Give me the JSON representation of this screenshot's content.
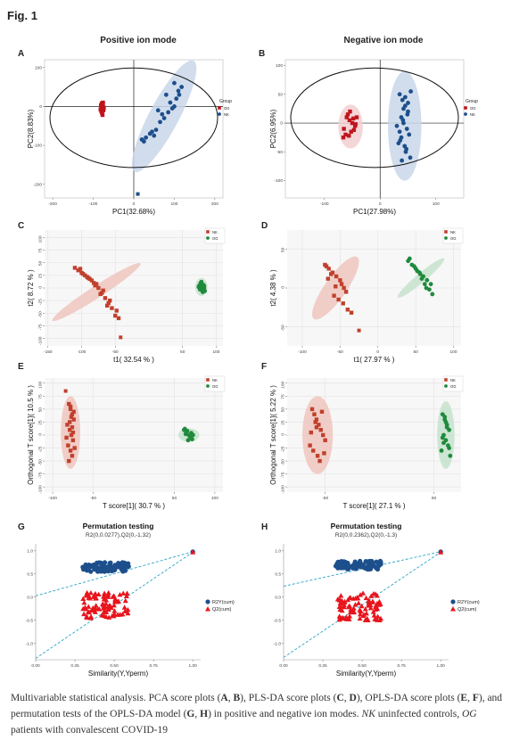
{
  "figure_title": "Fig. 1",
  "panels": {
    "A": {
      "letter": "A",
      "heading": "Positive ion mode"
    },
    "B": {
      "letter": "B",
      "heading": "Negative ion mode"
    },
    "C": {
      "letter": "C"
    },
    "D": {
      "letter": "D"
    },
    "E": {
      "letter": "E"
    },
    "F": {
      "letter": "F"
    },
    "G": {
      "letter": "G"
    },
    "H": {
      "letter": "H"
    }
  },
  "caption": {
    "p1": "Multivariable statistical analysis. PCA score plots (",
    "A": "A",
    "s1": ", ",
    "B": "B",
    "p2": "), PLS-DA score plots (",
    "C": "C",
    "s2": ", ",
    "D": "D",
    "p3": "), OPLS-DA score plots (",
    "E": "E",
    "s3": ", ",
    "F": "F",
    "p4": "), and permutation tests of the OPLS-DA model (",
    "G": "G",
    "s4": ", ",
    "H": "H",
    "p5": ") in positive and negative ion modes. ",
    "NK": "NK",
    "p6": " uninfected controls, ",
    "OG": "OG",
    "p7": " patients with convalescent COVID-19"
  },
  "chart_data": [
    {
      "id": "A",
      "type": "scatter",
      "xlabel": "PC1(32.68%)",
      "ylabel": "PC2(8.83%)",
      "xlim": [
        -220,
        220
      ],
      "ylim": [
        -235,
        120
      ],
      "xticks": [
        -200,
        -100,
        0,
        100,
        200
      ],
      "yticks": [
        -200,
        -100,
        0,
        100
      ],
      "legend": {
        "title": "Group",
        "entries": [
          "OG",
          "NK"
        ],
        "placement": "right"
      },
      "colors": {
        "OG": "#c0141c",
        "NK": "#1d4f8c"
      },
      "series": [
        {
          "name": "OG",
          "shape": "square",
          "x": [
            -80,
            -78,
            -76,
            -74,
            -82,
            -79,
            -77,
            -75,
            -81,
            -78,
            -76,
            -80,
            -74,
            -77,
            -79,
            -75
          ],
          "y": [
            -2,
            4,
            10,
            -5,
            -8,
            -14,
            0,
            -10,
            3,
            -18,
            6,
            -12,
            -3,
            -22,
            8,
            -6
          ]
        },
        {
          "name": "NK",
          "shape": "circle",
          "x": [
            80,
            90,
            100,
            60,
            70,
            110,
            105,
            95,
            40,
            55,
            30,
            25,
            20,
            45,
            65,
            75,
            85,
            100,
            112,
            118,
            50
          ],
          "y": [
            30,
            10,
            0,
            -10,
            -20,
            40,
            20,
            -5,
            -70,
            -60,
            -80,
            -90,
            -85,
            -65,
            -40,
            -30,
            -15,
            60,
            30,
            50,
            -75
          ]
        }
      ],
      "extra_points": [
        {
          "x": 10,
          "y": -225,
          "color": "#1d4f8c"
        }
      ],
      "ellipses": [
        {
          "cx": 75,
          "cy": -25,
          "rx": 155,
          "ry": 38,
          "angle_deg": 62,
          "fill": "#c9d7ea"
        }
      ]
    },
    {
      "id": "B",
      "type": "scatter",
      "xlabel": "PC1(27.98%)",
      "ylabel": "PC2(6.95%)",
      "xlim": [
        -170,
        150
      ],
      "ylim": [
        -130,
        110
      ],
      "xticks": [
        -100,
        0,
        100
      ],
      "yticks": [
        -100,
        -50,
        0,
        50,
        100
      ],
      "legend": {
        "title": "Group",
        "entries": [
          "OG",
          "NK"
        ],
        "placement": "right"
      },
      "colors": {
        "OG": "#c0141c",
        "NK": "#1d4f8c"
      },
      "series": [
        {
          "name": "OG",
          "shape": "square",
          "x": [
            -60,
            -55,
            -50,
            -45,
            -65,
            -58,
            -52,
            -48,
            -62,
            -56,
            -44,
            -42,
            -66,
            -54,
            -47
          ],
          "y": [
            10,
            5,
            0,
            -5,
            -10,
            15,
            -15,
            8,
            -20,
            -22,
            -2,
            10,
            -25,
            20,
            -12
          ]
        },
        {
          "name": "NK",
          "shape": "circle",
          "x": [
            35,
            40,
            45,
            50,
            38,
            42,
            48,
            52,
            36,
            44,
            46,
            54,
            39,
            41,
            49,
            30,
            35,
            45,
            50,
            42,
            38,
            55,
            47,
            33
          ],
          "y": [
            50,
            40,
            30,
            20,
            10,
            0,
            -10,
            -20,
            -30,
            -40,
            -50,
            -60,
            -65,
            5,
            15,
            -5,
            -15,
            45,
            35,
            25,
            -25,
            55,
            -45,
            -35
          ]
        }
      ],
      "ellipses": [
        {
          "cx": -53,
          "cy": -6,
          "rx": 22,
          "ry": 38,
          "angle_deg": 0,
          "fill": "#f2cfd1"
        },
        {
          "cx": 44,
          "cy": -5,
          "rx": 30,
          "ry": 95,
          "angle_deg": 0,
          "fill": "#c9d7ea"
        }
      ]
    },
    {
      "id": "C",
      "type": "scatter",
      "xlabel": "t1( 32.54 % )",
      "ylabel": "t2( 8.72 % )",
      "xlim": [
        -155,
        110
      ],
      "ylim": [
        -115,
        115
      ],
      "xticks": [
        -150,
        -100,
        -50,
        50,
        100
      ],
      "yticks": [
        -100,
        -75,
        -50,
        -25,
        0,
        25,
        50,
        75,
        100
      ],
      "legend": {
        "entries": [
          "NK",
          "OG"
        ],
        "placement": "top-right"
      },
      "colors": {
        "NK": "#c0402c",
        "OG": "#1f8a3c"
      },
      "series": [
        {
          "name": "NK",
          "shape": "square",
          "x": [
            -110,
            -105,
            -100,
            -95,
            -90,
            -85,
            -80,
            -75,
            -70,
            -65,
            -60,
            -55,
            -50,
            -45,
            -98,
            -88,
            -78,
            -68,
            -58,
            -48,
            -102,
            -92,
            -82,
            -72,
            -62
          ],
          "y": [
            40,
            35,
            30,
            25,
            20,
            15,
            5,
            0,
            -10,
            -20,
            -30,
            -40,
            -55,
            -60,
            28,
            18,
            8,
            -5,
            -25,
            -45,
            38,
            22,
            10,
            -12,
            -35
          ]
        },
        {
          "name": "OG",
          "shape": "circle",
          "x": [
            75,
            78,
            80,
            82,
            76,
            79,
            81,
            77,
            83,
            74,
            80,
            78,
            82,
            76
          ],
          "y": [
            5,
            8,
            3,
            0,
            -2,
            -4,
            6,
            10,
            -6,
            2,
            -8,
            12,
            4,
            -3
          ]
        }
      ],
      "extra_points": [
        {
          "x": -42,
          "y": -98,
          "color": "#c0402c"
        }
      ],
      "ellipses": [
        {
          "cx": -78,
          "cy": -8,
          "rx": 78,
          "ry": 12,
          "angle_deg": 33,
          "fill": "#f0c6be"
        },
        {
          "cx": 78,
          "cy": 2,
          "rx": 9,
          "ry": 18,
          "angle_deg": 0,
          "fill": "#c6e3cd"
        }
      ]
    },
    {
      "id": "D",
      "type": "scatter",
      "xlabel": "t1( 27.97 % )",
      "ylabel": "t2( 4.38 % )",
      "xlim": [
        -120,
        110
      ],
      "ylim": [
        -75,
        75
      ],
      "xticks": [
        -100,
        -50,
        0,
        50,
        100
      ],
      "yticks": [
        -50,
        0,
        50
      ],
      "legend": {
        "entries": [
          "NK",
          "OG"
        ],
        "placement": "top-right"
      },
      "colors": {
        "NK": "#c0402c",
        "OG": "#1f8a3c"
      },
      "series": [
        {
          "name": "NK",
          "shape": "square",
          "x": [
            -70,
            -65,
            -60,
            -55,
            -50,
            -48,
            -45,
            -42,
            -68,
            -62,
            -58,
            -52,
            -46,
            -40,
            -35,
            -66,
            -56
          ],
          "y": [
            30,
            25,
            20,
            15,
            10,
            5,
            0,
            -5,
            28,
            18,
            -10,
            -15,
            -20,
            -28,
            -32,
            12,
            2
          ]
        },
        {
          "name": "OG",
          "shape": "circle",
          "x": [
            40,
            45,
            50,
            55,
            60,
            65,
            70,
            48,
            52,
            58,
            62,
            68,
            42,
            56,
            64,
            72
          ],
          "y": [
            35,
            30,
            25,
            20,
            15,
            10,
            5,
            28,
            22,
            12,
            5,
            -2,
            38,
            18,
            0,
            -8
          ]
        }
      ],
      "extra_points": [
        {
          "x": -25,
          "y": -55,
          "color": "#c0402c"
        }
      ],
      "ellipses": [
        {
          "cx": -56,
          "cy": 0,
          "rx": 50,
          "ry": 14,
          "angle_deg": 55,
          "fill": "#f0c6be"
        },
        {
          "cx": 57,
          "cy": 13,
          "rx": 40,
          "ry": 6,
          "angle_deg": 40,
          "fill": "#c6e3cd"
        }
      ]
    },
    {
      "id": "E",
      "type": "scatter",
      "xlabel": "T score[1]( 30.7 % )",
      "ylabel": "Orthogonal T score[1]( 10.5 % )",
      "xlim": [
        -110,
        110
      ],
      "ylim": [
        -110,
        110
      ],
      "xticks": [
        -100,
        -50,
        50,
        100
      ],
      "yticks": [
        -100,
        -75,
        -50,
        -25,
        0,
        25,
        50,
        75,
        100
      ],
      "legend": {
        "entries": [
          "NK",
          "OG"
        ],
        "placement": "top-right"
      },
      "colors": {
        "NK": "#c0402c",
        "OG": "#1f8a3c"
      },
      "series": [
        {
          "name": "NK",
          "shape": "square",
          "x": [
            -80,
            -78,
            -76,
            -74,
            -82,
            -79,
            -77,
            -75,
            -81,
            -78,
            -76,
            -80,
            -74,
            -77,
            -79,
            -75,
            -83,
            -73,
            -78,
            -76
          ],
          "y": [
            60,
            50,
            40,
            30,
            20,
            10,
            0,
            -10,
            -20,
            -30,
            -40,
            -50,
            45,
            35,
            25,
            5,
            -5,
            -25,
            55,
            15
          ]
        },
        {
          "name": "OG",
          "shape": "circle",
          "x": [
            62,
            65,
            68,
            70,
            72,
            66,
            64,
            69,
            71,
            67,
            63,
            73
          ],
          "y": [
            10,
            5,
            0,
            -5,
            -8,
            8,
            2,
            -2,
            4,
            -10,
            12,
            0
          ]
        }
      ],
      "extra_points": [
        {
          "x": -84,
          "y": 85,
          "color": "#c0402c"
        }
      ],
      "ellipses": [
        {
          "cx": -78,
          "cy": 5,
          "rx": 12,
          "ry": 70,
          "angle_deg": 0,
          "fill": "#f0c6be"
        },
        {
          "cx": 68,
          "cy": 0,
          "rx": 13,
          "ry": 13,
          "angle_deg": 0,
          "fill": "#c6e3cd"
        }
      ]
    },
    {
      "id": "F",
      "type": "scatter",
      "xlabel": "T score[1]( 27.1 % )",
      "ylabel": "Orthogonal T score[1]( 5.22 % )",
      "xlim": [
        -85,
        75
      ],
      "ylim": [
        -110,
        110
      ],
      "xticks": [
        -50,
        50
      ],
      "yticks": [
        -100,
        -75,
        -50,
        -25,
        0,
        25,
        50,
        75,
        100
      ],
      "legend": {
        "entries": [
          "NK",
          "OG"
        ],
        "placement": "top-right"
      },
      "colors": {
        "NK": "#c0402c",
        "OG": "#1f8a3c"
      },
      "series": [
        {
          "name": "NK",
          "shape": "square",
          "x": [
            -62,
            -60,
            -58,
            -56,
            -54,
            -52,
            -50,
            -64,
            -61,
            -57,
            -55,
            -53,
            -59,
            -63,
            -51,
            -58
          ],
          "y": [
            50,
            40,
            30,
            20,
            10,
            0,
            -10,
            -20,
            -30,
            -40,
            -50,
            45,
            25,
            5,
            -35,
            15
          ]
        },
        {
          "name": "OG",
          "shape": "circle",
          "x": [
            58,
            60,
            62,
            64,
            59,
            61,
            63,
            57,
            65,
            60,
            62,
            58,
            64,
            61,
            59
          ],
          "y": [
            40,
            30,
            20,
            10,
            0,
            -10,
            -20,
            -30,
            -40,
            35,
            15,
            -5,
            -25,
            25,
            -15
          ]
        }
      ],
      "ellipses": [
        {
          "cx": -57,
          "cy": 0,
          "rx": 14,
          "ry": 75,
          "angle_deg": 0,
          "fill": "#f0c6be"
        },
        {
          "cx": 61,
          "cy": 0,
          "rx": 8,
          "ry": 65,
          "angle_deg": 0,
          "fill": "#c6e3cd"
        }
      ]
    },
    {
      "id": "G",
      "type": "scatter",
      "title": "Permutation testing",
      "subtitle": "R2(0,0.0277),Q2(0,-1.32)",
      "xlabel": "Similarity(Y,Yperm)",
      "ylabel": "",
      "xlim": [
        0,
        1.05
      ],
      "ylim": [
        -1.35,
        1.15
      ],
      "xticks": [
        0.0,
        0.25,
        0.5,
        0.75,
        1.0
      ],
      "xticklabels": [
        "0.00",
        "0.25",
        "0.50",
        "0.75",
        "1.00"
      ],
      "yticks": [
        1.0,
        0.5,
        0.0,
        -0.5,
        -1.0
      ],
      "yticklabels": [
        "1.0",
        "0.5",
        "0.0",
        "-0.5",
        "-1.0"
      ],
      "legend": {
        "entries": [
          "R2Y(cum)",
          "Q2(cum)"
        ],
        "placement": "right"
      },
      "colors": {
        "R2Y(cum)": "#1d4f8c",
        "Q2(cum)": "#e8141c"
      },
      "r2_intercept": 0.0277,
      "q2_intercept": -1.32,
      "r2_range": [
        0.55,
        0.75
      ],
      "q2_range": [
        -0.45,
        0.1
      ],
      "perm_x_range": [
        0.3,
        0.6
      ],
      "observed": {
        "x": 1.0,
        "r2": 0.98,
        "q2": 0.97
      }
    },
    {
      "id": "H",
      "type": "scatter",
      "title": "Permutation testing",
      "subtitle": "R2(0,0.2362),Q2(0,-1.3)",
      "xlabel": "Similarity(Y,Yperm)",
      "ylabel": "",
      "xlim": [
        0,
        1.05
      ],
      "ylim": [
        -1.35,
        1.15
      ],
      "xticks": [
        0.0,
        0.25,
        0.5,
        0.75,
        1.0
      ],
      "xticklabels": [
        "0.00",
        "0.25",
        "0.50",
        "0.75",
        "1.00"
      ],
      "yticks": [
        1.0,
        0.5,
        0.0,
        -0.5,
        -1.0
      ],
      "yticklabels": [
        "1.0",
        "0.5",
        "0.0",
        "-0.5",
        "-1.0"
      ],
      "legend": {
        "entries": [
          "R2Y(cum)",
          "Q2(cum)"
        ],
        "placement": "right"
      },
      "colors": {
        "R2Y(cum)": "#1d4f8c",
        "Q2(cum)": "#e8141c"
      },
      "r2_intercept": 0.2362,
      "q2_intercept": -1.3,
      "r2_range": [
        0.6,
        0.78
      ],
      "q2_range": [
        -0.5,
        0.1
      ],
      "perm_x_range": [
        0.33,
        0.62
      ],
      "observed": {
        "x": 1.0,
        "r2": 0.98,
        "q2": 0.97
      }
    }
  ]
}
